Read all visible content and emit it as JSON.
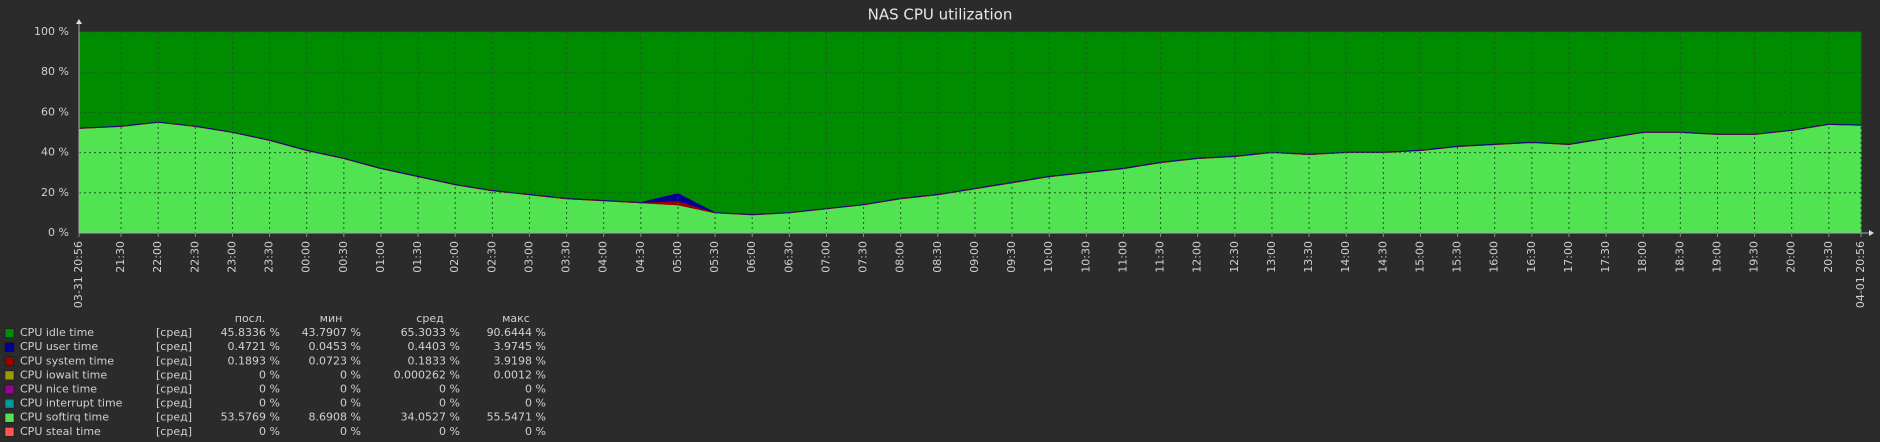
{
  "chart_data": {
    "type": "stacked-area",
    "title": "NAS CPU utilization",
    "x": [
      0,
      34,
      64,
      94,
      124,
      154,
      184,
      214,
      244,
      274,
      304,
      334,
      364,
      394,
      424,
      454,
      484,
      514,
      544,
      574,
      604,
      634,
      664,
      694,
      724,
      754,
      784,
      814,
      844,
      874,
      904,
      934,
      964,
      994,
      1024,
      1054,
      1084,
      1114,
      1144,
      1174,
      1204,
      1234,
      1264,
      1294,
      1324,
      1354,
      1384,
      1414,
      1440
    ],
    "xlim": [
      0,
      1440
    ],
    "xticks": [
      {
        "value": 0,
        "label": "03-31 20:56"
      },
      {
        "value": 34,
        "label": "21:30"
      },
      {
        "value": 64,
        "label": "22:00"
      },
      {
        "value": 94,
        "label": "22:30"
      },
      {
        "value": 124,
        "label": "23:00"
      },
      {
        "value": 154,
        "label": "23:30"
      },
      {
        "value": 184,
        "label": "00:00"
      },
      {
        "value": 214,
        "label": "00:30"
      },
      {
        "value": 244,
        "label": "01:00"
      },
      {
        "value": 274,
        "label": "01:30"
      },
      {
        "value": 304,
        "label": "02:00"
      },
      {
        "value": 334,
        "label": "02:30"
      },
      {
        "value": 364,
        "label": "03:00"
      },
      {
        "value": 394,
        "label": "03:30"
      },
      {
        "value": 424,
        "label": "04:00"
      },
      {
        "value": 454,
        "label": "04:30"
      },
      {
        "value": 484,
        "label": "05:00"
      },
      {
        "value": 514,
        "label": "05:30"
      },
      {
        "value": 544,
        "label": "06:00"
      },
      {
        "value": 574,
        "label": "06:30"
      },
      {
        "value": 604,
        "label": "07:00"
      },
      {
        "value": 634,
        "label": "07:30"
      },
      {
        "value": 664,
        "label": "08:00"
      },
      {
        "value": 694,
        "label": "08:30"
      },
      {
        "value": 724,
        "label": "09:00"
      },
      {
        "value": 754,
        "label": "09:30"
      },
      {
        "value": 784,
        "label": "10:00"
      },
      {
        "value": 814,
        "label": "10:30"
      },
      {
        "value": 844,
        "label": "11:00"
      },
      {
        "value": 874,
        "label": "11:30"
      },
      {
        "value": 904,
        "label": "12:00"
      },
      {
        "value": 934,
        "label": "12:30"
      },
      {
        "value": 964,
        "label": "13:00"
      },
      {
        "value": 994,
        "label": "13:30"
      },
      {
        "value": 1024,
        "label": "14:00"
      },
      {
        "value": 1054,
        "label": "14:30"
      },
      {
        "value": 1084,
        "label": "15:00"
      },
      {
        "value": 1114,
        "label": "15:30"
      },
      {
        "value": 1144,
        "label": "16:00"
      },
      {
        "value": 1174,
        "label": "16:30"
      },
      {
        "value": 1204,
        "label": "17:00"
      },
      {
        "value": 1234,
        "label": "17:30"
      },
      {
        "value": 1264,
        "label": "18:00"
      },
      {
        "value": 1294,
        "label": "18:30"
      },
      {
        "value": 1324,
        "label": "19:00"
      },
      {
        "value": 1354,
        "label": "19:30"
      },
      {
        "value": 1384,
        "label": "20:00"
      },
      {
        "value": 1414,
        "label": "20:30"
      },
      {
        "value": 1440,
        "label": "04-01 20:56"
      }
    ],
    "ylim": [
      0,
      100
    ],
    "yticks": [
      {
        "value": 0,
        "label": "0 %"
      },
      {
        "value": 20,
        "label": "20 %"
      },
      {
        "value": 40,
        "label": "40 %"
      },
      {
        "value": 60,
        "label": "60 %"
      },
      {
        "value": 80,
        "label": "80 %"
      },
      {
        "value": 100,
        "label": "100 %"
      }
    ],
    "grid": true,
    "stat_headers": [
      "посл.",
      "мин",
      "сред",
      "макс"
    ],
    "series": [
      {
        "name": "CPU idle time",
        "color": "#008c00",
        "function": "[сред]",
        "stats": [
          "45.8336 %",
          "43.7907 %",
          "65.3033 %",
          "90.6444 %"
        ],
        "values": [
          47.4,
          46.4,
          44.4,
          46.4,
          49.4,
          53.4,
          58.4,
          62.4,
          67.4,
          71.4,
          75.4,
          78.4,
          80.4,
          82.4,
          83.4,
          84.4,
          80,
          89.4,
          90.4,
          89.4,
          87.4,
          85.4,
          82.4,
          80.4,
          77.4,
          74.4,
          71.4,
          69.4,
          67.4,
          64.4,
          62.4,
          61.4,
          59.4,
          60.4,
          59.4,
          59.4,
          58.4,
          56.4,
          55.4,
          54.4,
          55.4,
          52.4,
          49.4,
          49.4,
          50.4,
          50.4,
          48.4,
          45.4,
          45.8
        ]
      },
      {
        "name": "CPU user time",
        "color": "#000099",
        "function": "[сред]",
        "stats": [
          "0.4721 %",
          "0.0453 %",
          "0.4403 %",
          "3.9745 %"
        ],
        "values": [
          0.4,
          0.4,
          0.4,
          0.4,
          0.4,
          0.4,
          0.4,
          0.4,
          0.4,
          0.4,
          0.4,
          0.4,
          0.4,
          0.4,
          0.4,
          0.4,
          4,
          0.4,
          0.4,
          0.4,
          0.4,
          0.4,
          0.4,
          0.4,
          0.4,
          0.4,
          0.4,
          0.4,
          0.4,
          0.4,
          0.4,
          0.4,
          0.4,
          0.4,
          0.4,
          0.4,
          0.4,
          0.4,
          0.4,
          0.4,
          0.4,
          0.4,
          0.4,
          0.4,
          0.4,
          0.4,
          0.4,
          0.4,
          0.4
        ]
      },
      {
        "name": "CPU system time",
        "color": "#990000",
        "function": "[сред]",
        "stats": [
          "0.1893 %",
          "0.0723 %",
          "0.1833 %",
          "3.9198 %"
        ],
        "values": [
          0.2,
          0.2,
          0.2,
          0.2,
          0.2,
          0.2,
          0.2,
          0.2,
          0.2,
          0.2,
          0.2,
          0.2,
          0.2,
          0.2,
          0.2,
          0.2,
          2,
          0.2,
          0.2,
          0.2,
          0.2,
          0.2,
          0.2,
          0.2,
          0.2,
          0.2,
          0.2,
          0.2,
          0.2,
          0.2,
          0.2,
          0.2,
          0.2,
          0.2,
          0.2,
          0.2,
          0.2,
          0.2,
          0.2,
          0.2,
          0.2,
          0.2,
          0.2,
          0.2,
          0.2,
          0.2,
          0.2,
          0.2,
          0.2
        ]
      },
      {
        "name": "CPU iowait time",
        "color": "#999900",
        "function": "[сред]",
        "stats": [
          "0 %",
          "0 %",
          "0.000262 %",
          "0.0012 %"
        ],
        "values": [
          0,
          0,
          0,
          0,
          0,
          0,
          0,
          0,
          0,
          0,
          0,
          0,
          0,
          0,
          0,
          0,
          0,
          0,
          0,
          0,
          0,
          0,
          0,
          0,
          0,
          0,
          0,
          0,
          0,
          0,
          0,
          0,
          0,
          0,
          0,
          0,
          0,
          0,
          0,
          0,
          0,
          0,
          0,
          0,
          0,
          0,
          0,
          0,
          0
        ]
      },
      {
        "name": "CPU nice time",
        "color": "#990099",
        "function": "[сред]",
        "stats": [
          "0 %",
          "0 %",
          "0 %",
          "0 %"
        ],
        "values": [
          0,
          0,
          0,
          0,
          0,
          0,
          0,
          0,
          0,
          0,
          0,
          0,
          0,
          0,
          0,
          0,
          0,
          0,
          0,
          0,
          0,
          0,
          0,
          0,
          0,
          0,
          0,
          0,
          0,
          0,
          0,
          0,
          0,
          0,
          0,
          0,
          0,
          0,
          0,
          0,
          0,
          0,
          0,
          0,
          0,
          0,
          0,
          0,
          0
        ]
      },
      {
        "name": "CPU interrupt time",
        "color": "#009999",
        "function": "[сред]",
        "stats": [
          "0 %",
          "0 %",
          "0 %",
          "0 %"
        ],
        "values": [
          0,
          0,
          0,
          0,
          0,
          0,
          0,
          0,
          0,
          0,
          0,
          0,
          0,
          0,
          0,
          0,
          0,
          0,
          0,
          0,
          0,
          0,
          0,
          0,
          0,
          0,
          0,
          0,
          0,
          0,
          0,
          0,
          0,
          0,
          0,
          0,
          0,
          0,
          0,
          0,
          0,
          0,
          0,
          0,
          0,
          0,
          0,
          0,
          0
        ]
      },
      {
        "name": "CPU softirq time",
        "color": "#52e352",
        "function": "[сред]",
        "stats": [
          "53.5769 %",
          "8.6908 %",
          "34.0527 %",
          "55.5471 %"
        ],
        "values": [
          52,
          53,
          55,
          53,
          50,
          46,
          41,
          37,
          32,
          28,
          24,
          21,
          19,
          17,
          16,
          15,
          14,
          10,
          9,
          10,
          12,
          14,
          17,
          19,
          22,
          25,
          28,
          30,
          32,
          35,
          37,
          38,
          40,
          39,
          40,
          40,
          41,
          43,
          44,
          45,
          44,
          47,
          50,
          50,
          49,
          49,
          51,
          54,
          53.6
        ]
      },
      {
        "name": "CPU steal time",
        "color": "#ff5555",
        "function": "[сред]",
        "stats": [
          "0 %",
          "0 %",
          "0 %",
          "0 %"
        ],
        "values": [
          0,
          0,
          0,
          0,
          0,
          0,
          0,
          0,
          0,
          0,
          0,
          0,
          0,
          0,
          0,
          0,
          0,
          0,
          0,
          0,
          0,
          0,
          0,
          0,
          0,
          0,
          0,
          0,
          0,
          0,
          0,
          0,
          0,
          0,
          0,
          0,
          0,
          0,
          0,
          0,
          0,
          0,
          0,
          0,
          0,
          0,
          0,
          0,
          0
        ]
      }
    ]
  }
}
